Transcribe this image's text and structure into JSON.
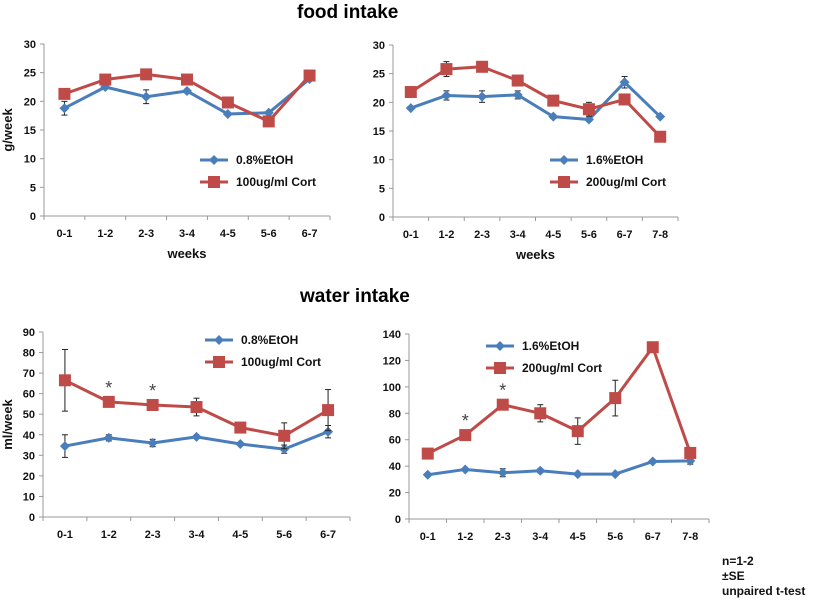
{
  "titles": {
    "food": "food intake",
    "water": "water intake"
  },
  "notes": [
    "n=1-2",
    "±SE",
    "unpaired t-test"
  ],
  "colors": {
    "blue": "#4a7ebb",
    "red": "#be4b48"
  },
  "chart_data": [
    {
      "id": "food-low",
      "type": "line",
      "title": "food intake",
      "xlabel": "weeks",
      "ylabel": "g/week",
      "ylim": [
        0,
        30
      ],
      "yticks": [
        0,
        5,
        10,
        15,
        20,
        25,
        30
      ],
      "categories": [
        "0-1",
        "1-2",
        "2-3",
        "3-4",
        "4-5",
        "5-6",
        "6-7"
      ],
      "legend_position": "lower-right",
      "series": [
        {
          "name": "0.8%EtOH",
          "color": "#4a7ebb",
          "marker": "diamond",
          "values": [
            18.8,
            22.5,
            20.8,
            21.8,
            17.8,
            18.0,
            23.9
          ],
          "errors": [
            1.2,
            0.3,
            1.2,
            0.3,
            0.2,
            0.2,
            0.3
          ]
        },
        {
          "name": "100ug/ml Cort",
          "color": "#be4b48",
          "marker": "square",
          "values": [
            21.3,
            23.8,
            24.7,
            23.8,
            19.8,
            16.5,
            24.5
          ],
          "errors": [
            0,
            0,
            0.3,
            0.3,
            0,
            0,
            0
          ]
        }
      ],
      "annotations": []
    },
    {
      "id": "food-high",
      "type": "line",
      "title": "food intake",
      "xlabel": "weeks",
      "ylabel": "",
      "ylim": [
        0,
        30
      ],
      "yticks": [
        0,
        5,
        10,
        15,
        20,
        25,
        30
      ],
      "categories": [
        "0-1",
        "1-2",
        "2-3",
        "3-4",
        "4-5",
        "5-6",
        "6-7",
        "7-8"
      ],
      "legend_position": "lower-right",
      "series": [
        {
          "name": "1.6%EtOH",
          "color": "#4a7ebb",
          "marker": "diamond",
          "values": [
            19.0,
            21.2,
            21.0,
            21.3,
            17.5,
            17.0,
            23.5,
            17.5
          ],
          "errors": [
            0,
            0.8,
            1.0,
            0.7,
            0.3,
            0.2,
            1.0,
            0.2
          ]
        },
        {
          "name": "200ug/ml Cort",
          "color": "#be4b48",
          "marker": "square",
          "values": [
            21.8,
            25.8,
            26.2,
            23.8,
            20.3,
            18.8,
            20.5,
            14.0
          ],
          "errors": [
            0,
            1.3,
            0,
            0,
            0,
            1.2,
            0,
            0
          ]
        }
      ],
      "annotations": []
    },
    {
      "id": "water-low",
      "type": "line",
      "title": "water intake",
      "xlabel": "",
      "ylabel": "ml/week",
      "ylim": [
        0,
        90
      ],
      "yticks": [
        0,
        10,
        20,
        30,
        40,
        50,
        60,
        70,
        80,
        90
      ],
      "categories": [
        "0-1",
        "1-2",
        "2-3",
        "3-4",
        "4-5",
        "5-6",
        "6-7"
      ],
      "legend_position": "top-right",
      "series": [
        {
          "name": "0.8%EtOH",
          "color": "#4a7ebb",
          "marker": "diamond",
          "values": [
            34.5,
            38.5,
            36.0,
            39.0,
            35.5,
            33.0,
            41.5
          ],
          "errors": [
            5.5,
            1.5,
            1.8,
            0.8,
            0.5,
            2.0,
            3.0
          ]
        },
        {
          "name": "100ug/ml Cort",
          "color": "#be4b48",
          "marker": "square",
          "values": [
            66.5,
            56.0,
            54.5,
            53.5,
            43.5,
            39.5,
            52.0
          ],
          "errors": [
            15.0,
            0,
            0,
            4.3,
            0,
            6.3,
            10.0
          ]
        }
      ],
      "annotations": [
        {
          "text": "*",
          "category": "1-2"
        },
        {
          "text": "*",
          "category": "2-3"
        }
      ]
    },
    {
      "id": "water-high",
      "type": "line",
      "title": "water intake",
      "xlabel": "",
      "ylabel": "",
      "ylim": [
        0,
        140
      ],
      "yticks": [
        0,
        20,
        40,
        60,
        80,
        100,
        120,
        140
      ],
      "categories": [
        "0-1",
        "1-2",
        "2-3",
        "3-4",
        "4-5",
        "5-6",
        "6-7",
        "7-8"
      ],
      "legend_position": "top-left",
      "series": [
        {
          "name": "1.6%EtOH",
          "color": "#4a7ebb",
          "marker": "diamond",
          "values": [
            33.5,
            37.5,
            35.0,
            36.5,
            34.0,
            34.0,
            43.5,
            44.0
          ],
          "errors": [
            0,
            0,
            3.0,
            1.5,
            0,
            0,
            0,
            2.5
          ]
        },
        {
          "name": "200ug/ml Cort",
          "color": "#be4b48",
          "marker": "square",
          "values": [
            49.5,
            63.5,
            86.5,
            80.0,
            66.5,
            91.5,
            130.0,
            50.0
          ],
          "errors": [
            0,
            0,
            0,
            6.5,
            10.0,
            13.5,
            0,
            0
          ]
        }
      ],
      "annotations": [
        {
          "text": "*",
          "category": "1-2"
        },
        {
          "text": "*",
          "category": "2-3"
        }
      ]
    }
  ]
}
